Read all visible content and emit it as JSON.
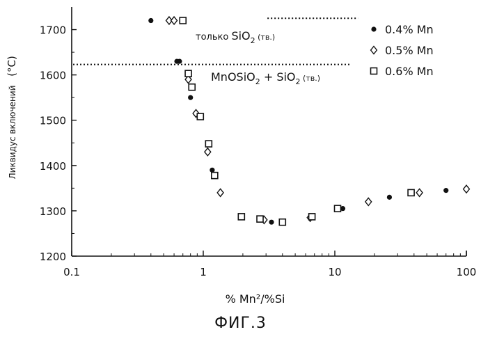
{
  "chart_data": {
    "type": "scatter",
    "x_scale": "log",
    "xlim": [
      0.1,
      100
    ],
    "ylim": [
      1200,
      1750
    ],
    "xlabel": "% Mn²/%Si",
    "ylabel": "Ликвидус включений",
    "ylabel_unit": "(°C)",
    "x_ticks": [
      {
        "value": 0.1,
        "label": "0.1"
      },
      {
        "value": 1,
        "label": "1"
      },
      {
        "value": 10,
        "label": "10"
      },
      {
        "value": 100,
        "label": "100"
      }
    ],
    "y_ticks": [
      {
        "value": 1200,
        "label": "1200"
      },
      {
        "value": 1300,
        "label": "1300"
      },
      {
        "value": 1400,
        "label": "1400"
      },
      {
        "value": 1500,
        "label": "1500"
      },
      {
        "value": 1600,
        "label": "1600"
      },
      {
        "value": 1700,
        "label": "1700"
      }
    ],
    "grid": false,
    "legend_position": "top-right",
    "series": [
      {
        "name": "0.4% Mn",
        "marker": "filled-circle",
        "points": [
          {
            "x": 0.4,
            "y": 1720
          },
          {
            "x": 0.63,
            "y": 1630
          },
          {
            "x": 0.66,
            "y": 1630
          },
          {
            "x": 0.8,
            "y": 1550
          },
          {
            "x": 1.17,
            "y": 1390
          },
          {
            "x": 3.3,
            "y": 1275
          },
          {
            "x": 11.5,
            "y": 1305
          },
          {
            "x": 26,
            "y": 1330
          },
          {
            "x": 70,
            "y": 1345
          }
        ]
      },
      {
        "name": "0.5% Mn",
        "marker": "open-diamond",
        "points": [
          {
            "x": 0.55,
            "y": 1720
          },
          {
            "x": 0.6,
            "y": 1720
          },
          {
            "x": 0.77,
            "y": 1590
          },
          {
            "x": 0.88,
            "y": 1515
          },
          {
            "x": 1.08,
            "y": 1430
          },
          {
            "x": 1.35,
            "y": 1340
          },
          {
            "x": 2.9,
            "y": 1280
          },
          {
            "x": 6.5,
            "y": 1285
          },
          {
            "x": 18,
            "y": 1320
          },
          {
            "x": 44,
            "y": 1340
          },
          {
            "x": 100,
            "y": 1348
          }
        ]
      },
      {
        "name": "0.6% Mn",
        "marker": "open-square",
        "points": [
          {
            "x": 0.7,
            "y": 1720
          },
          {
            "x": 0.77,
            "y": 1603
          },
          {
            "x": 0.82,
            "y": 1573
          },
          {
            "x": 0.95,
            "y": 1508
          },
          {
            "x": 1.1,
            "y": 1448
          },
          {
            "x": 1.22,
            "y": 1378
          },
          {
            "x": 1.95,
            "y": 1287
          },
          {
            "x": 2.7,
            "y": 1282
          },
          {
            "x": 4.0,
            "y": 1275
          },
          {
            "x": 6.7,
            "y": 1287
          },
          {
            "x": 10.5,
            "y": 1305
          },
          {
            "x": 38,
            "y": 1340
          }
        ]
      }
    ],
    "reference_lines": [
      {
        "y": 1725,
        "x_from": 3.0,
        "x_to": 15,
        "style": "dotted"
      },
      {
        "y": 1623,
        "x_from": 0.1,
        "x_to": 13,
        "style": "dotted"
      }
    ],
    "annotations": [
      {
        "id": "sio2_label",
        "main": "только SiO",
        "sub": "2",
        "suffix": "(тв.)"
      },
      {
        "id": "mnosio2_label",
        "part1": "MnOSiO",
        "sub1": "2",
        "part2": " + SiO",
        "sub2": "2",
        "suffix": "(тв.)"
      }
    ]
  },
  "caption": "ФИГ.3"
}
